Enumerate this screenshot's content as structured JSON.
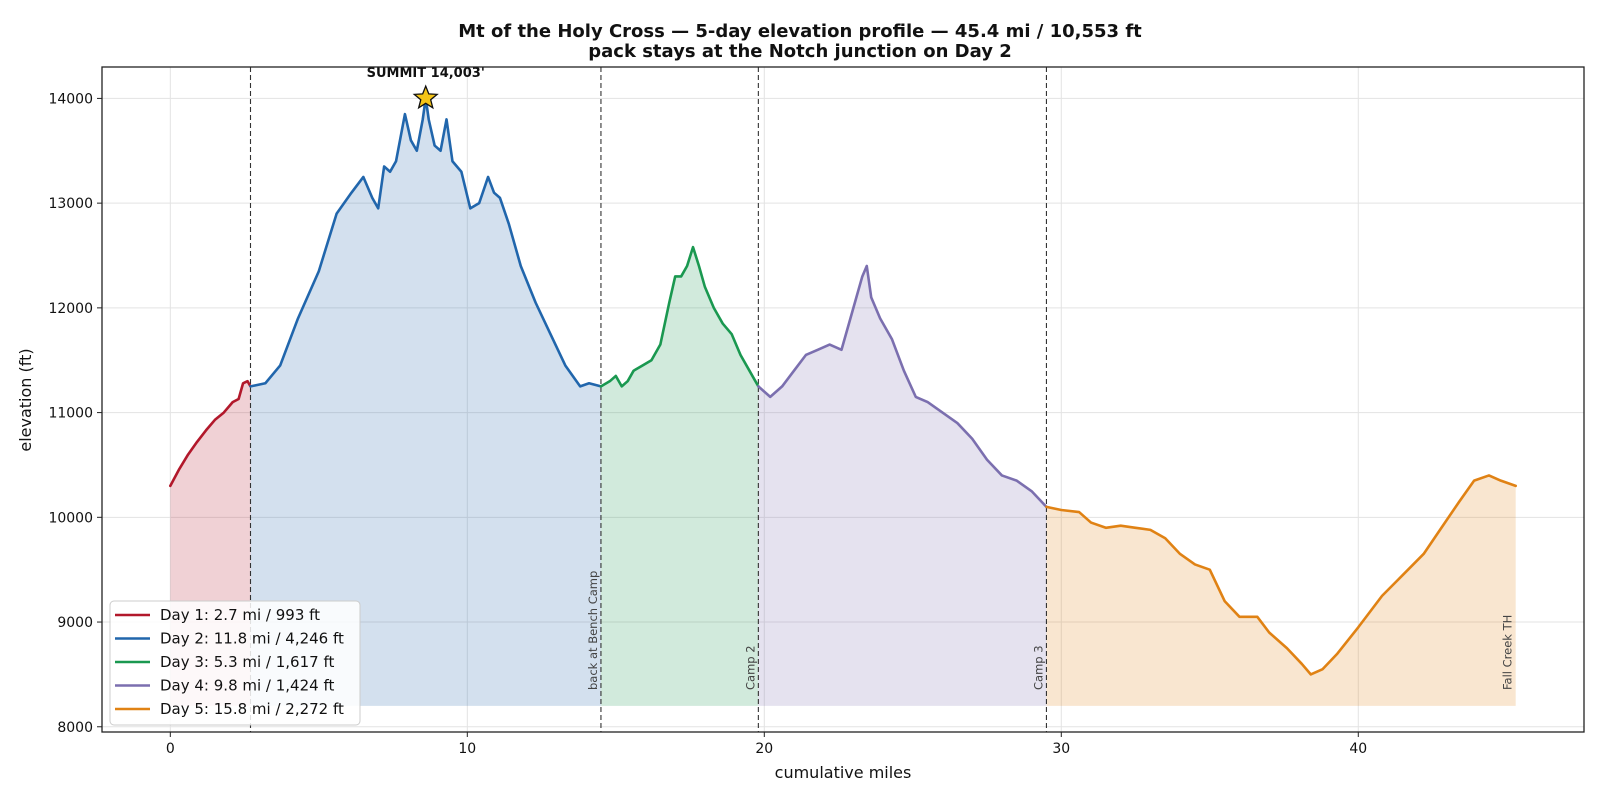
{
  "chart_data": {
    "type": "area",
    "title": "Mt of the Holy Cross — 5-day elevation profile — 45.4 mi / 10,553 ft",
    "subtitle": "pack stays at the Notch junction on Day 2",
    "xlabel": "cumulative miles",
    "ylabel": "elevation (ft)",
    "xlim": [
      -2.3,
      47.6
    ],
    "ylim": [
      7950,
      14300
    ],
    "xticks": [
      0,
      10,
      20,
      30,
      40
    ],
    "yticks": [
      8000,
      9000,
      10000,
      11000,
      12000,
      13000,
      14000
    ],
    "grid": true,
    "legend_position": "lower-left",
    "fill_base": 8200,
    "series": [
      {
        "name": "Day 1: 2.7 mi / 993 ft",
        "color": "#b2182b",
        "x": [
          0,
          0.3,
          0.6,
          0.9,
          1.2,
          1.5,
          1.8,
          2.1,
          2.3,
          2.45,
          2.6,
          2.7
        ],
        "y": [
          10300,
          10460,
          10600,
          10720,
          10830,
          10930,
          11000,
          11100,
          11130,
          11280,
          11300,
          11250
        ]
      },
      {
        "name": "Day 2: 11.8 mi / 4,246 ft",
        "color": "#2166ac",
        "x": [
          2.7,
          3.2,
          3.7,
          4.3,
          5.0,
          5.6,
          6.1,
          6.5,
          6.8,
          7.0,
          7.2,
          7.4,
          7.6,
          7.9,
          8.1,
          8.3,
          8.5,
          8.6,
          8.7,
          8.9,
          9.1,
          9.3,
          9.5,
          9.8,
          10.1,
          10.4,
          10.7,
          10.9,
          11.1,
          11.4,
          11.8,
          12.3,
          12.8,
          13.3,
          13.8,
          14.1,
          14.5
        ],
        "y": [
          11250,
          11280,
          11450,
          11900,
          12350,
          12900,
          13100,
          13250,
          13050,
          12950,
          13350,
          13300,
          13400,
          13850,
          13600,
          13500,
          13800,
          14003,
          13800,
          13550,
          13500,
          13800,
          13400,
          13300,
          12950,
          13000,
          13250,
          13100,
          13050,
          12800,
          12400,
          12050,
          11750,
          11450,
          11250,
          11280,
          11250
        ]
      },
      {
        "name": "Day 3: 5.3 mi / 1,617 ft",
        "color": "#1a9850",
        "x": [
          14.5,
          14.8,
          15.0,
          15.2,
          15.4,
          15.6,
          15.9,
          16.2,
          16.5,
          16.8,
          17.0,
          17.2,
          17.4,
          17.6,
          17.8,
          18.0,
          18.3,
          18.6,
          18.9,
          19.2,
          19.5,
          19.8
        ],
        "y": [
          11250,
          11300,
          11350,
          11250,
          11300,
          11400,
          11450,
          11500,
          11650,
          12050,
          12300,
          12300,
          12400,
          12580,
          12400,
          12200,
          12000,
          11850,
          11750,
          11550,
          11400,
          11250
        ]
      },
      {
        "name": "Day 4: 9.8 mi / 1,424 ft",
        "color": "#7b6faf",
        "x": [
          19.8,
          20.2,
          20.6,
          21.0,
          21.4,
          21.8,
          22.2,
          22.6,
          22.9,
          23.1,
          23.3,
          23.45,
          23.6,
          23.9,
          24.3,
          24.7,
          25.1,
          25.5,
          26.0,
          26.5,
          27.0,
          27.5,
          28.0,
          28.5,
          29.0,
          29.5
        ],
        "y": [
          11250,
          11150,
          11250,
          11400,
          11550,
          11600,
          11650,
          11600,
          11900,
          12100,
          12300,
          12400,
          12100,
          11900,
          11700,
          11400,
          11150,
          11100,
          11000,
          10900,
          10750,
          10550,
          10400,
          10350,
          10250,
          10100
        ]
      },
      {
        "name": "Day 5: 15.8 mi / 2,272 ft",
        "color": "#e08214",
        "x": [
          29.5,
          30.0,
          30.6,
          31.0,
          31.5,
          32.0,
          32.5,
          33.0,
          33.5,
          34.0,
          34.5,
          35.0,
          35.5,
          36.0,
          36.6,
          37.0,
          37.6,
          38.1,
          38.4,
          38.8,
          39.3,
          40.0,
          40.8,
          41.5,
          42.2,
          42.8,
          43.4,
          43.9,
          44.4,
          44.8,
          45.3
        ],
        "y": [
          10100,
          10070,
          10050,
          9950,
          9900,
          9920,
          9900,
          9880,
          9800,
          9650,
          9550,
          9500,
          9200,
          9050,
          9050,
          8900,
          8750,
          8600,
          8500,
          8550,
          8700,
          8950,
          9250,
          9450,
          9650,
          9900,
          10150,
          10350,
          10400,
          10350,
          10300
        ]
      }
    ],
    "boundaries": [
      {
        "x": 2.7,
        "label": ""
      },
      {
        "x": 14.5,
        "label": "back at Bench Camp"
      },
      {
        "x": 19.8,
        "label": "Camp 2"
      },
      {
        "x": 29.5,
        "label": "Camp 3"
      }
    ],
    "end_label": {
      "x": 45.3,
      "label": "Fall Creek TH"
    },
    "summit": {
      "x": 8.6,
      "y": 14003,
      "label": "SUMMIT 14,003'",
      "color": "#f5c518"
    }
  }
}
